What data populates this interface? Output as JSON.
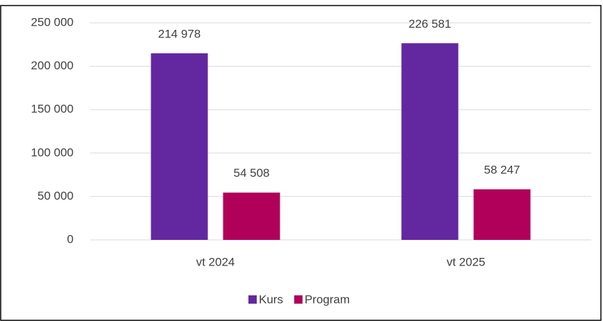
{
  "chart_data": {
    "type": "bar",
    "categories": [
      "vt 2024",
      "vt 2025"
    ],
    "series": [
      {
        "name": "Kurs",
        "color": "#6328a0",
        "values": [
          214978,
          226581
        ],
        "value_labels": [
          "214 978",
          "226 581"
        ]
      },
      {
        "name": "Program",
        "color": "#b0005a",
        "values": [
          54508,
          58247
        ],
        "value_labels": [
          "54 508",
          "58 247"
        ]
      }
    ],
    "ylim": [
      0,
      250000
    ],
    "yticks": [
      {
        "value": 0,
        "label": "0"
      },
      {
        "value": 50000,
        "label": "50 000"
      },
      {
        "value": 100000,
        "label": "100 000"
      },
      {
        "value": 150000,
        "label": "150 000"
      },
      {
        "value": 200000,
        "label": "200 000"
      },
      {
        "value": 250000,
        "label": "250 000"
      }
    ],
    "grid": true,
    "legend": "bottom"
  }
}
